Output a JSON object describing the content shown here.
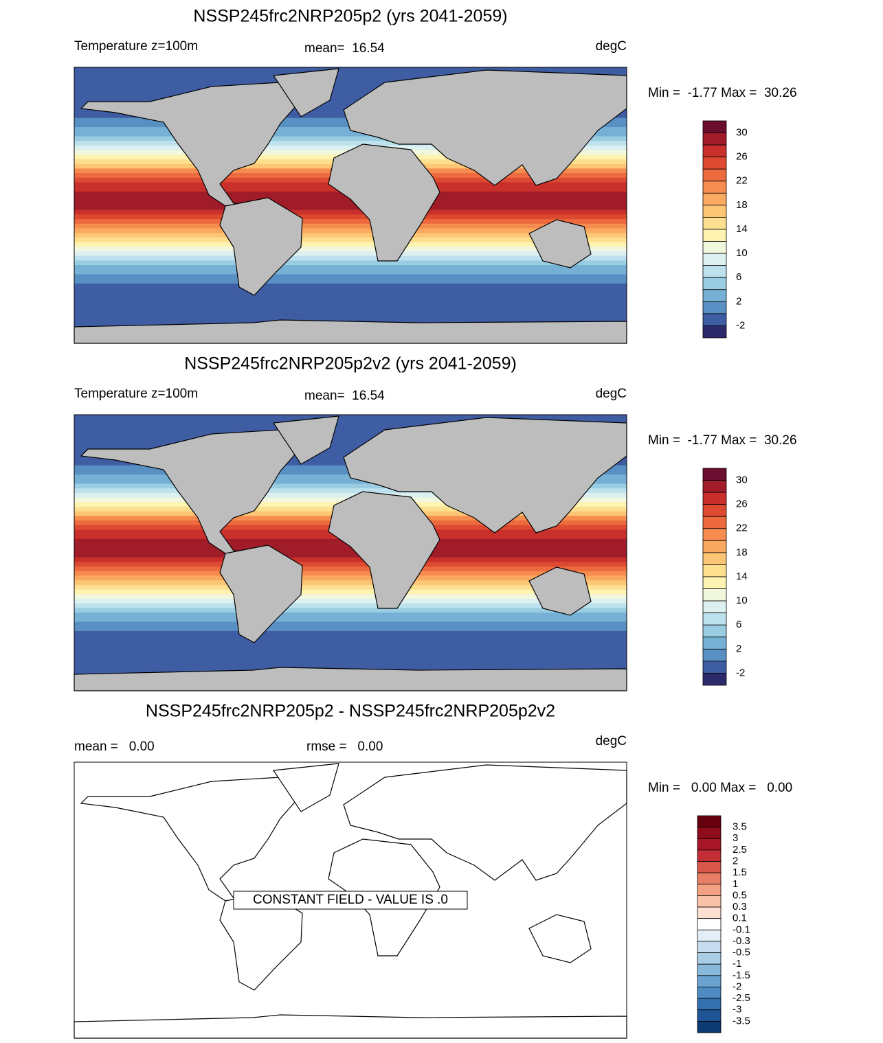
{
  "panels": [
    {
      "title": "NSSP245frc2NRP205p2 (yrs 2041-2059)",
      "header_left": "Temperature z=100m",
      "header_center": "mean=  16.54",
      "header_right": "degC",
      "range_text": "Min =  -1.77 Max =  30.26",
      "colorbar": {
        "labels": [
          30,
          26,
          22,
          18,
          14,
          10,
          6,
          2,
          -2
        ],
        "colors": [
          "#6b0d2f",
          "#a01c28",
          "#c9302b",
          "#dd4a31",
          "#ec6a3e",
          "#f68c50",
          "#faaa60",
          "#fdc675",
          "#fde08f",
          "#fef3b0",
          "#f2f8dd",
          "#dcf0f0",
          "#bde2ee",
          "#9acde2",
          "#76b1d5",
          "#5890c3",
          "#3f5da3",
          "#2d2a6b"
        ]
      }
    },
    {
      "title": "NSSP245frc2NRP205p2v2 (yrs 2041-2059)",
      "header_left": "Temperature z=100m",
      "header_center": "mean=  16.54",
      "header_right": "degC",
      "range_text": "Min =  -1.77 Max =  30.26",
      "colorbar": {
        "labels": [
          30,
          26,
          22,
          18,
          14,
          10,
          6,
          2,
          -2
        ],
        "colors": [
          "#6b0d2f",
          "#a01c28",
          "#c9302b",
          "#dd4a31",
          "#ec6a3e",
          "#f68c50",
          "#faaa60",
          "#fdc675",
          "#fde08f",
          "#fef3b0",
          "#f2f8dd",
          "#dcf0f0",
          "#bde2ee",
          "#9acde2",
          "#76b1d5",
          "#5890c3",
          "#3f5da3",
          "#2d2a6b"
        ]
      }
    },
    {
      "title": "NSSP245frc2NRP205p2 - NSSP245frc2NRP205p2v2",
      "header_left": "mean =   0.00",
      "header_center": "rmse =   0.00",
      "header_right": "degC",
      "range_text": "Min =   0.00 Max =   0.00",
      "annotation": "CONSTANT FIELD - VALUE IS .0",
      "colorbar": {
        "labels": [
          3.5,
          3,
          2.5,
          2,
          1.5,
          1,
          0.5,
          0.3,
          0.1,
          -0.1,
          -0.3,
          -0.5,
          -1,
          -1.5,
          -2,
          -2.5,
          -3,
          -3.5
        ],
        "colors": [
          "#67000d",
          "#8e0c1c",
          "#a8162a",
          "#c42e36",
          "#d9574a",
          "#e97e66",
          "#f3a083",
          "#f9c2a8",
          "#fde0d2",
          "#ffffff",
          "#e3eef6",
          "#c7dcee",
          "#a9cde4",
          "#88b8da",
          "#6aa3cf",
          "#4d8bc2",
          "#3370b0",
          "#1f5597",
          "#0b3b72"
        ]
      }
    }
  ]
}
